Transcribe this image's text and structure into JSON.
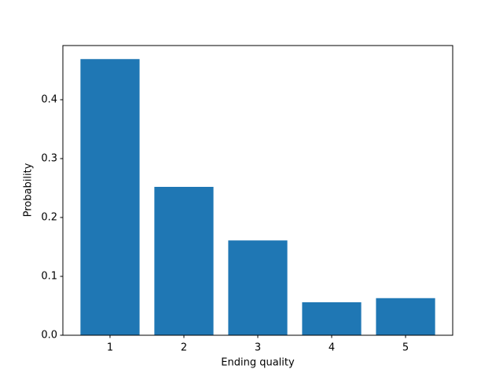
{
  "chart_data": {
    "type": "bar",
    "xlabel": "Ending quality",
    "ylabel": "Probability",
    "x": [
      1,
      2,
      3,
      4,
      5
    ],
    "values": [
      0.469,
      0.252,
      0.161,
      0.056,
      0.063
    ],
    "color": "#1f77b4",
    "xlim": [
      0.362,
      5.638
    ],
    "xticks": [
      1,
      2,
      3,
      4,
      5
    ],
    "ylim": [
      0,
      0.492
    ],
    "yticks": [
      {
        "value": 0,
        "label": "0.0"
      },
      0.1,
      0.2,
      0.3,
      0.4
    ],
    "grid": false
  }
}
